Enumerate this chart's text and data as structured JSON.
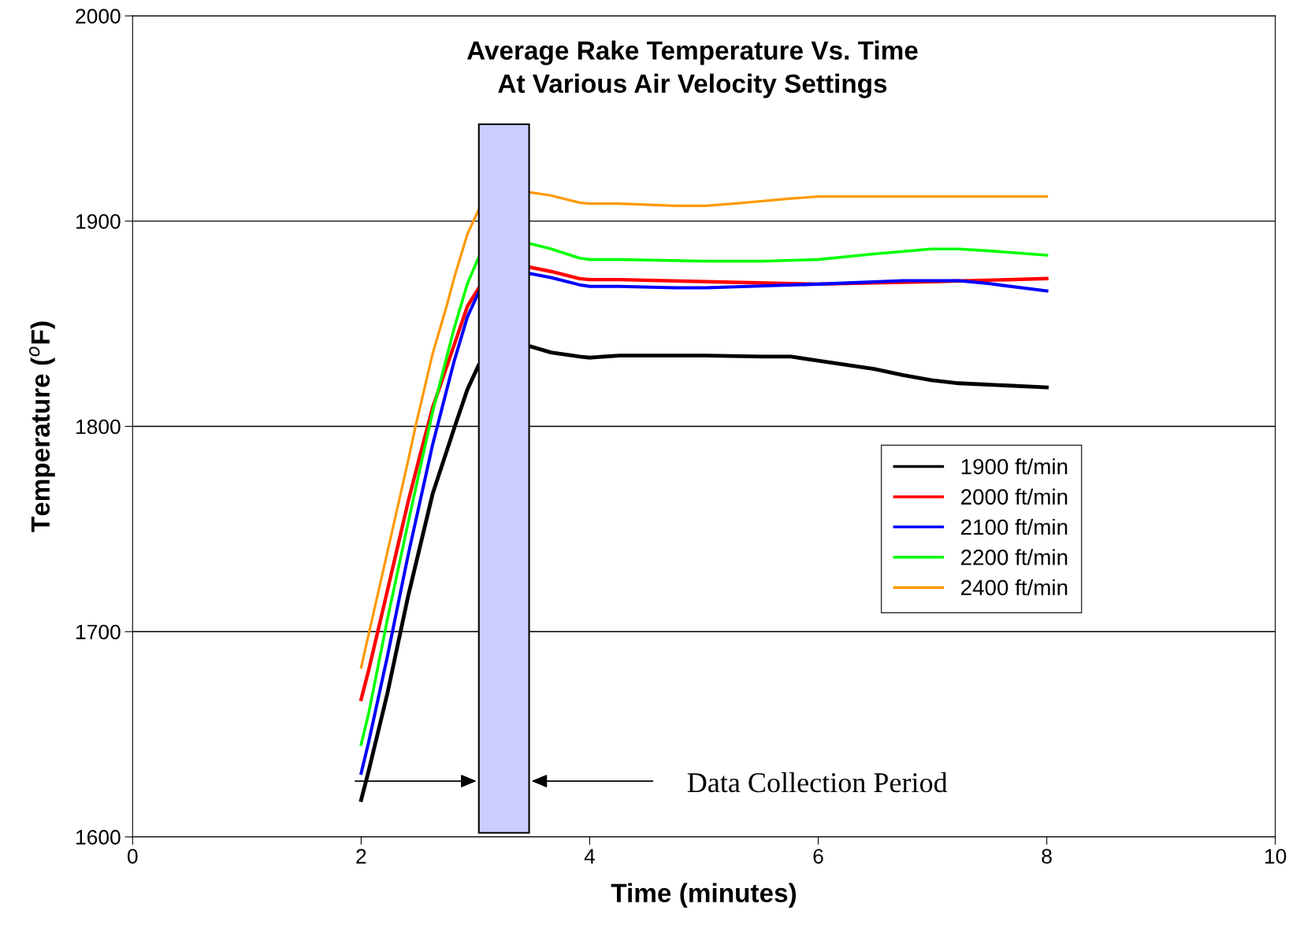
{
  "chart_data": {
    "type": "line",
    "title": "Average Rake Temperature Vs. Time\nAt Various Air Velocity Settings",
    "xlabel": "Time (minutes)",
    "ylabel": "Temperature ($^{o}$F)",
    "xlim": [
      0,
      10
    ],
    "xticks": [
      0,
      2,
      4,
      6,
      8,
      10
    ],
    "ylim": [
      1600,
      2000
    ],
    "yticks": [
      1600,
      1700,
      1800,
      1900,
      2000
    ],
    "grid": "y",
    "legend": "right",
    "marker": "none",
    "line_style": "solid",
    "series": [
      {
        "name": "1900 ft/min",
        "color": "#000000",
        "x": [
          2.0,
          2.065,
          2.23,
          2.41,
          2.625,
          2.82,
          2.93,
          3.03,
          3.48,
          3.66,
          3.91,
          4.0,
          4.26,
          5.02,
          5.51,
          5.76,
          6.0,
          6.49,
          6.74,
          6.99,
          7.23,
          8.0
        ],
        "values": [
          1618,
          1632,
          1670,
          1717,
          1767,
          1800,
          1818,
          1830,
          1839,
          1836,
          1834,
          1833.5,
          1834.5,
          1834.5,
          1834,
          1834,
          1832,
          1828,
          1825,
          1822.5,
          1821,
          1819
        ]
      },
      {
        "name": "2000 ft/min",
        "color": "#ff0000",
        "x": [
          2.0,
          2.065,
          2.23,
          2.41,
          2.52,
          2.625,
          2.81,
          2.93,
          3.03,
          3.48,
          3.66,
          3.91,
          4.0,
          4.26,
          5.02,
          6.0,
          6.99,
          8.0
        ],
        "values": [
          1667,
          1681,
          1720,
          1763,
          1787,
          1809,
          1839,
          1858.5,
          1867.5,
          1877.5,
          1875.5,
          1872,
          1871.5,
          1871.5,
          1870.5,
          1869.3,
          1870.5,
          1872
        ]
      },
      {
        "name": "2100 ft/min",
        "color": "#0000ff",
        "x": [
          2.0,
          2.065,
          2.23,
          2.41,
          2.625,
          2.81,
          2.93,
          3.03,
          3.48,
          3.66,
          3.91,
          4.0,
          4.26,
          4.75,
          5.02,
          6.0,
          6.74,
          7.23,
          7.5,
          8.0
        ],
        "values": [
          1631,
          1646,
          1688,
          1737,
          1791,
          1831,
          1853.4,
          1865.5,
          1874.4,
          1872.5,
          1869,
          1868.2,
          1868.2,
          1867.5,
          1867.5,
          1869.3,
          1871,
          1871,
          1869.5,
          1866
        ]
      },
      {
        "name": "2200 ft/min",
        "color": "#00ff00",
        "x": [
          2.0,
          2.065,
          2.23,
          2.41,
          2.625,
          2.81,
          2.93,
          3.03,
          3.48,
          3.66,
          3.91,
          4.0,
          4.26,
          5.02,
          5.51,
          6.0,
          6.49,
          6.99,
          7.23,
          7.5,
          8.0
        ],
        "values": [
          1645,
          1660,
          1706,
          1752.8,
          1807,
          1847,
          1869.5,
          1882.6,
          1889,
          1886.5,
          1882,
          1881.3,
          1881.3,
          1880.5,
          1880.5,
          1881.3,
          1884,
          1886.4,
          1886.4,
          1885.5,
          1883.4
        ]
      },
      {
        "name": "2400 ft/min",
        "color": "#ff9900",
        "x": [
          2.0,
          2.065,
          2.23,
          2.41,
          2.48,
          2.625,
          2.75,
          2.82,
          2.93,
          3.03,
          3.48,
          3.66,
          3.91,
          4.0,
          4.26,
          4.75,
          5.02,
          5.26,
          5.76,
          6.0,
          8.0
        ],
        "values": [
          1682.5,
          1698.5,
          1738.8,
          1783,
          1801,
          1835.3,
          1859,
          1873.5,
          1893.7,
          1905.7,
          1914,
          1912.5,
          1909,
          1908.5,
          1908.5,
          1907.5,
          1907.5,
          1908.5,
          1911,
          1912,
          1912
        ]
      }
    ],
    "bands": [
      {
        "axis": "x",
        "from": 3.03,
        "to": 3.47,
        "color": "#ccccff"
      }
    ],
    "annotations": [
      "Data Collection Period"
    ]
  }
}
